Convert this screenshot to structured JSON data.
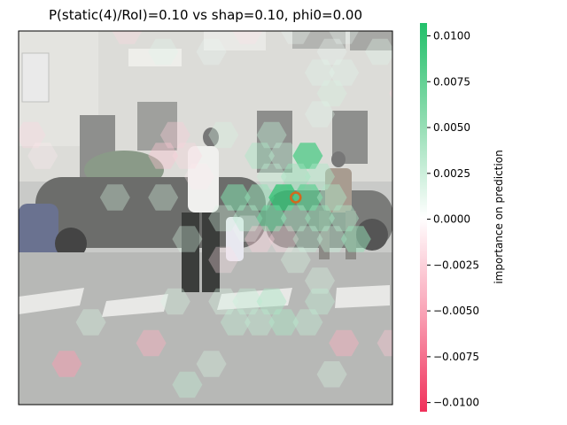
{
  "chart_data": {
    "type": "heatmap",
    "title": "P(static(4)/RoI)=0.10 vs shap=0.10, phi0=0.00",
    "xlabel": "",
    "ylabel": "",
    "colorbar": {
      "label": "importance on prediction",
      "range": [
        -0.0105,
        0.0107
      ],
      "ticks": [
        0.01,
        0.0075,
        0.005,
        0.0025,
        0.0,
        -0.0025,
        -0.005,
        -0.0075,
        -0.01
      ],
      "tick_labels": [
        "0.0100",
        "0.0075",
        "0.0050",
        "0.0025",
        "0.0000",
        "−0.0025",
        "−0.0050",
        "−0.0075",
        "−0.0100"
      ],
      "colormap": [
        "#f0305a",
        "#ffffff",
        "#22c06a"
      ]
    },
    "background": "street scene with pedestrians on a crosswalk (greyed photo)",
    "roi_marker": {
      "col": 11.5,
      "row": 8,
      "color": "#d2691e"
    },
    "cells": [
      {
        "col": 4.5,
        "row": 0,
        "value": -0.002
      },
      {
        "col": 9.5,
        "row": 0,
        "value": -0.0015
      },
      {
        "col": 11.5,
        "row": 0,
        "value": 0.001
      },
      {
        "col": 13.5,
        "row": 0,
        "value": 0.001
      },
      {
        "col": 15,
        "row": 1,
        "value": 0.0015
      },
      {
        "col": 6,
        "row": 1,
        "value": 0.0015
      },
      {
        "col": 8,
        "row": 1,
        "value": 0.001
      },
      {
        "col": 13,
        "row": 1,
        "value": 0.001
      },
      {
        "col": 12.5,
        "row": 2,
        "value": 0.0015
      },
      {
        "col": 13.5,
        "row": 2,
        "value": 0.0015
      },
      {
        "col": 13,
        "row": 3,
        "value": 0.002
      },
      {
        "col": 16,
        "row": 3,
        "value": -0.002
      },
      {
        "col": 12.5,
        "row": 4,
        "value": 0.0015
      },
      {
        "col": 0.5,
        "row": 5,
        "value": -0.002
      },
      {
        "col": 6.5,
        "row": 5,
        "value": -0.0025
      },
      {
        "col": 8.5,
        "row": 5,
        "value": 0.002
      },
      {
        "col": 10.5,
        "row": 5,
        "value": 0.003
      },
      {
        "col": 6,
        "row": 6,
        "value": -0.003
      },
      {
        "col": 7,
        "row": 6,
        "value": -0.002
      },
      {
        "col": 10,
        "row": 6,
        "value": 0.004
      },
      {
        "col": 11,
        "row": 6,
        "value": 0.003
      },
      {
        "col": 12,
        "row": 6,
        "value": 0.009
      },
      {
        "col": 1,
        "row": 6,
        "value": -0.001
      },
      {
        "col": 11.5,
        "row": 7,
        "value": 0.005
      },
      {
        "col": 12.5,
        "row": 7,
        "value": 0.004
      },
      {
        "col": 10.5,
        "row": 7,
        "value": 0.003
      },
      {
        "col": 7.5,
        "row": 7,
        "value": -0.001
      },
      {
        "col": 9,
        "row": 8,
        "value": 0.006
      },
      {
        "col": 10,
        "row": 8,
        "value": 0.005
      },
      {
        "col": 11,
        "row": 8,
        "value": 0.01
      },
      {
        "col": 12,
        "row": 8,
        "value": 0.008
      },
      {
        "col": 13,
        "row": 8,
        "value": 0.004
      },
      {
        "col": 4,
        "row": 8,
        "value": 0.002
      },
      {
        "col": 6,
        "row": 8,
        "value": 0.002
      },
      {
        "col": 9.5,
        "row": 9,
        "value": 0.004
      },
      {
        "col": 10.5,
        "row": 9,
        "value": 0.007
      },
      {
        "col": 11.5,
        "row": 9,
        "value": 0.004
      },
      {
        "col": 12.5,
        "row": 9,
        "value": 0.005
      },
      {
        "col": 13.5,
        "row": 9,
        "value": 0.004
      },
      {
        "col": 8.5,
        "row": 9,
        "value": 0.002
      },
      {
        "col": 9.5,
        "row": 9.5,
        "value": 0.001
      },
      {
        "col": 7,
        "row": 10,
        "value": 0.002
      },
      {
        "col": 10,
        "row": 10,
        "value": -0.0025
      },
      {
        "col": 11,
        "row": 10,
        "value": -0.002
      },
      {
        "col": 12,
        "row": 10,
        "value": 0.003
      },
      {
        "col": 13,
        "row": 10,
        "value": 0.003
      },
      {
        "col": 14,
        "row": 10,
        "value": 0.005
      },
      {
        "col": 8.5,
        "row": 11,
        "value": -0.0015
      },
      {
        "col": 11.5,
        "row": 11,
        "value": 0.002
      },
      {
        "col": 12.5,
        "row": 12,
        "value": 0.002
      },
      {
        "col": 6.5,
        "row": 13,
        "value": 0.002
      },
      {
        "col": 9.5,
        "row": 13,
        "value": 0.003
      },
      {
        "col": 8.5,
        "row": 13,
        "value": 0.002
      },
      {
        "col": 10.5,
        "row": 13,
        "value": 0.004
      },
      {
        "col": 12.5,
        "row": 13,
        "value": 0.003
      },
      {
        "col": 3,
        "row": 14,
        "value": 0.002
      },
      {
        "col": 9,
        "row": 14,
        "value": 0.003
      },
      {
        "col": 10,
        "row": 14,
        "value": 0.003
      },
      {
        "col": 11,
        "row": 14,
        "value": 0.004
      },
      {
        "col": 12,
        "row": 14,
        "value": 0.003
      },
      {
        "col": 5.5,
        "row": 15,
        "value": -0.004
      },
      {
        "col": 13.5,
        "row": 15,
        "value": -0.004
      },
      {
        "col": 15.5,
        "row": 15,
        "value": -0.003
      },
      {
        "col": 2,
        "row": 16,
        "value": -0.005
      },
      {
        "col": 8,
        "row": 16,
        "value": 0.002
      },
      {
        "col": 7,
        "row": 17,
        "value": 0.003
      },
      {
        "col": 13,
        "row": 16.5,
        "value": 0.002
      }
    ]
  }
}
